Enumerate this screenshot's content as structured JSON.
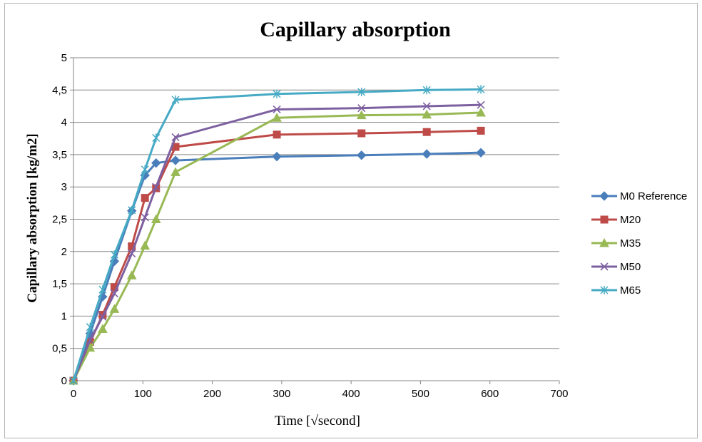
{
  "chart_data": {
    "type": "line",
    "title": "Capillary absorption",
    "xlabel": "Time [√second]",
    "ylabel": "Capillary absorption  [kg/m2]",
    "xlim": [
      0,
      700
    ],
    "ylim": [
      0,
      5
    ],
    "x_ticks": [
      0,
      100,
      200,
      300,
      400,
      500,
      600,
      700
    ],
    "y_ticks": [
      0,
      0.5,
      1,
      1.5,
      2,
      2.5,
      3,
      3.5,
      4,
      4.5,
      5
    ],
    "x_tick_labels": [
      "0",
      "100",
      "200",
      "300",
      "400",
      "500",
      "600",
      "700"
    ],
    "y_tick_labels": [
      "0",
      "0,5",
      "1",
      "1,5",
      "2",
      "2,5",
      "3",
      "3,5",
      "4",
      "4,5",
      "5"
    ],
    "grid": "horizontal",
    "legend_position": "right",
    "series": [
      {
        "name": "M0 Reference",
        "color": "#4a7ebb",
        "marker": "diamond",
        "x": [
          0,
          24,
          42,
          59,
          84,
          103,
          119,
          147,
          293,
          415,
          509,
          587
        ],
        "y": [
          0,
          0.73,
          1.3,
          1.85,
          2.63,
          3.18,
          3.37,
          3.41,
          3.47,
          3.49,
          3.51,
          3.53
        ]
      },
      {
        "name": "M20",
        "color": "#be4b48",
        "marker": "square",
        "x": [
          0,
          24,
          42,
          59,
          84,
          103,
          119,
          147,
          293,
          415,
          509,
          587
        ],
        "y": [
          0,
          0.6,
          1.02,
          1.45,
          2.08,
          2.83,
          2.98,
          3.62,
          3.81,
          3.83,
          3.85,
          3.87
        ]
      },
      {
        "name": "M35",
        "color": "#98b954",
        "marker": "triangle",
        "x": [
          0,
          24,
          42,
          59,
          84,
          103,
          119,
          147,
          293,
          415,
          509,
          587
        ],
        "y": [
          0,
          0.51,
          0.8,
          1.11,
          1.63,
          2.09,
          2.5,
          3.23,
          4.07,
          4.11,
          4.12,
          4.15
        ]
      },
      {
        "name": "M50",
        "color": "#7d60a0",
        "marker": "x",
        "x": [
          0,
          24,
          42,
          59,
          84,
          103,
          119,
          147,
          293,
          415,
          509,
          587
        ],
        "y": [
          0,
          0.63,
          0.99,
          1.35,
          1.97,
          2.53,
          3.0,
          3.77,
          4.2,
          4.22,
          4.25,
          4.27
        ]
      },
      {
        "name": "M65",
        "color": "#46aac5",
        "marker": "star",
        "x": [
          0,
          24,
          42,
          59,
          84,
          103,
          119,
          147,
          293,
          415,
          509,
          587
        ],
        "y": [
          0,
          0.83,
          1.41,
          1.95,
          2.64,
          3.27,
          3.76,
          4.35,
          4.44,
          4.47,
          4.5,
          4.51
        ]
      }
    ]
  }
}
